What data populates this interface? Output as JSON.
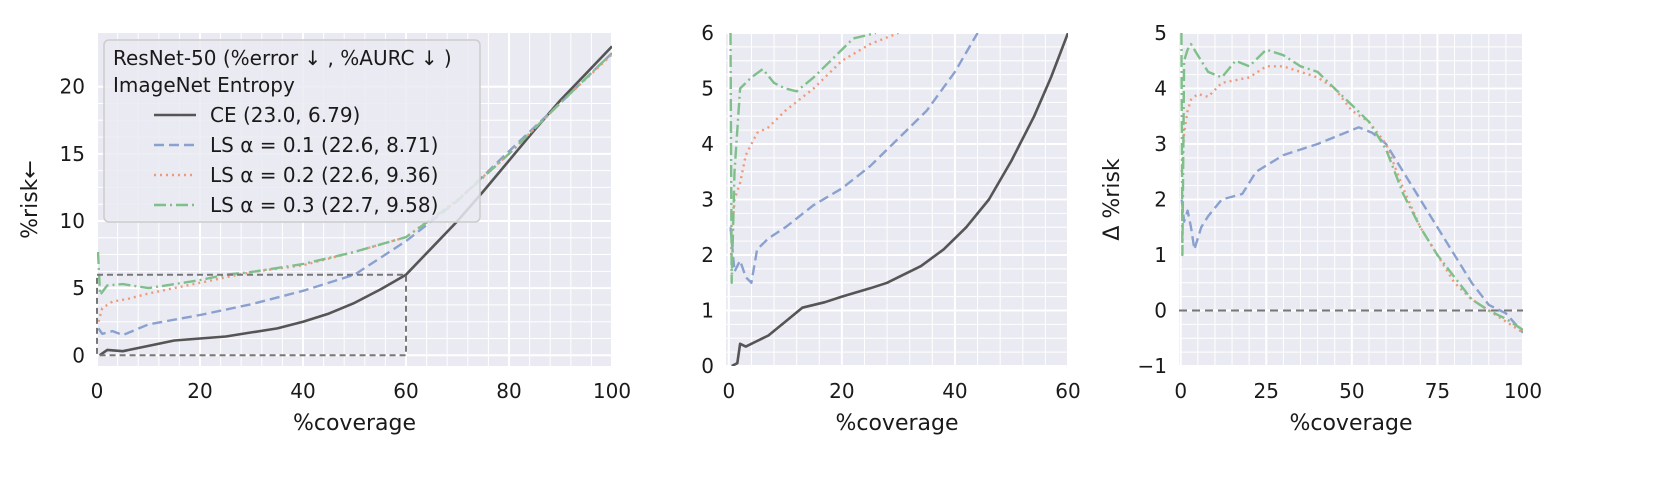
{
  "chart_data": [
    {
      "type": "line",
      "xlabel": "%coverage",
      "ylabel": "%risk←",
      "xlim": [
        0,
        100
      ],
      "ylim": [
        -0.8,
        24
      ],
      "xticks": [
        0,
        20,
        40,
        60,
        80,
        100
      ],
      "yticks": [
        0,
        5,
        10,
        15,
        20
      ],
      "grid": true,
      "legend": {
        "placement": "upper-left",
        "title_line1": "ResNet-50 (%error ↓ , %AURC ↓ )",
        "title_line2": "ImageNet Entropy",
        "entries": [
          "CE (23.0, 6.79)",
          "LS α = 0.1 (22.6, 8.71)",
          "LS α = 0.2 (22.6, 9.36)",
          "LS α = 0.3 (22.7, 9.58)"
        ]
      },
      "inset_box": {
        "x": [
          0,
          60
        ],
        "y": [
          0,
          6
        ]
      },
      "series": [
        {
          "key": "ce",
          "color": "#555555",
          "dash": "solid",
          "points": [
            [
              0.5,
              0.0
            ],
            [
              2,
              0.4
            ],
            [
              5,
              0.3
            ],
            [
              10,
              0.7
            ],
            [
              15,
              1.1
            ],
            [
              20,
              1.25
            ],
            [
              25,
              1.4
            ],
            [
              30,
              1.7
            ],
            [
              35,
              2.0
            ],
            [
              40,
              2.5
            ],
            [
              45,
              3.1
            ],
            [
              50,
              3.9
            ],
            [
              55,
              4.9
            ],
            [
              60,
              6.0
            ],
            [
              65,
              8.0
            ],
            [
              70,
              10.0
            ],
            [
              75,
              12.2
            ],
            [
              80,
              14.5
            ],
            [
              85,
              16.8
            ],
            [
              90,
              19.0
            ],
            [
              95,
              21.0
            ],
            [
              100,
              23.0
            ]
          ]
        },
        {
          "key": "ls1",
          "color": "#8aa1cf",
          "dash": "dashed",
          "points": [
            [
              0.3,
              2.0
            ],
            [
              1,
              1.6
            ],
            [
              3,
              1.8
            ],
            [
              5,
              1.5
            ],
            [
              10,
              2.3
            ],
            [
              20,
              3.0
            ],
            [
              30,
              3.8
            ],
            [
              40,
              4.8
            ],
            [
              50,
              6.0
            ],
            [
              60,
              8.5
            ],
            [
              70,
              11.5
            ],
            [
              80,
              15.2
            ],
            [
              90,
              18.8
            ],
            [
              100,
              22.5
            ]
          ]
        },
        {
          "key": "ls2",
          "color": "#ee9a7a",
          "dash": "dotted",
          "points": [
            [
              0.3,
              2.5
            ],
            [
              1,
              3.5
            ],
            [
              3,
              4.0
            ],
            [
              6,
              4.2
            ],
            [
              10,
              4.6
            ],
            [
              15,
              5.0
            ],
            [
              20,
              5.4
            ],
            [
              25,
              5.8
            ],
            [
              30,
              6.2
            ],
            [
              40,
              6.7
            ],
            [
              50,
              7.7
            ],
            [
              60,
              8.8
            ],
            [
              70,
              11.6
            ],
            [
              80,
              15.0
            ],
            [
              90,
              18.8
            ],
            [
              100,
              22.4
            ]
          ]
        },
        {
          "key": "ls3",
          "color": "#7fbf8a",
          "dash": "dashdot",
          "points": [
            [
              0.2,
              7.7
            ],
            [
              0.6,
              4.5
            ],
            [
              2,
              5.2
            ],
            [
              5,
              5.3
            ],
            [
              10,
              5.0
            ],
            [
              15,
              5.3
            ],
            [
              20,
              5.6
            ],
            [
              25,
              6.0
            ],
            [
              30,
              6.2
            ],
            [
              40,
              6.8
            ],
            [
              50,
              7.7
            ],
            [
              60,
              8.8
            ],
            [
              70,
              11.5
            ],
            [
              80,
              15.0
            ],
            [
              90,
              18.8
            ],
            [
              100,
              22.5
            ]
          ]
        }
      ]
    },
    {
      "type": "line",
      "xlabel": "%coverage",
      "ylabel": "",
      "xlim": [
        -0.5,
        60
      ],
      "ylim": [
        0,
        6
      ],
      "xticks": [
        0,
        20,
        40,
        60
      ],
      "yticks": [
        0,
        1,
        2,
        3,
        4,
        5,
        6
      ],
      "grid": true,
      "series": [
        {
          "key": "ce",
          "color": "#555555",
          "dash": "solid",
          "points": [
            [
              0.5,
              0.0
            ],
            [
              1.5,
              0.05
            ],
            [
              2,
              0.4
            ],
            [
              3,
              0.35
            ],
            [
              5,
              0.45
            ],
            [
              7,
              0.55
            ],
            [
              10,
              0.8
            ],
            [
              13,
              1.05
            ],
            [
              17,
              1.15
            ],
            [
              20,
              1.25
            ],
            [
              25,
              1.4
            ],
            [
              28,
              1.5
            ],
            [
              30,
              1.6
            ],
            [
              34,
              1.8
            ],
            [
              38,
              2.1
            ],
            [
              42,
              2.5
            ],
            [
              46,
              3.0
            ],
            [
              50,
              3.7
            ],
            [
              54,
              4.5
            ],
            [
              57,
              5.2
            ],
            [
              60,
              6.0
            ]
          ]
        },
        {
          "key": "ls1",
          "color": "#8aa1cf",
          "dash": "dashed",
          "points": [
            [
              0.3,
              2.5
            ],
            [
              1,
              1.7
            ],
            [
              2,
              1.9
            ],
            [
              3,
              1.6
            ],
            [
              4,
              1.5
            ],
            [
              5,
              2.1
            ],
            [
              7,
              2.3
            ],
            [
              10,
              2.5
            ],
            [
              15,
              2.9
            ],
            [
              20,
              3.2
            ],
            [
              25,
              3.6
            ],
            [
              30,
              4.1
            ],
            [
              35,
              4.6
            ],
            [
              40,
              5.3
            ],
            [
              44,
              6.0
            ]
          ]
        },
        {
          "key": "ls2",
          "color": "#ee9a7a",
          "dash": "dotted",
          "points": [
            [
              0.4,
              2.0
            ],
            [
              1,
              3.0
            ],
            [
              2,
              3.3
            ],
            [
              3,
              3.8
            ],
            [
              5,
              4.2
            ],
            [
              7,
              4.3
            ],
            [
              10,
              4.6
            ],
            [
              15,
              5.0
            ],
            [
              20,
              5.5
            ],
            [
              25,
              5.8
            ],
            [
              30,
              6.0
            ]
          ]
        },
        {
          "key": "ls3",
          "color": "#7fbf8a",
          "dash": "dashdot",
          "points": [
            [
              0.3,
              6.0
            ],
            [
              0.5,
              1.5
            ],
            [
              1,
              3.5
            ],
            [
              2,
              5.0
            ],
            [
              4,
              5.2
            ],
            [
              6,
              5.35
            ],
            [
              8,
              5.1
            ],
            [
              10,
              5.0
            ],
            [
              12,
              4.95
            ],
            [
              15,
              5.2
            ],
            [
              18,
              5.5
            ],
            [
              22,
              5.9
            ],
            [
              26,
              6.0
            ]
          ]
        }
      ]
    },
    {
      "type": "line",
      "xlabel": "%coverage",
      "ylabel": "Δ %risk",
      "xlim": [
        -0.5,
        100
      ],
      "ylim": [
        -1,
        5
      ],
      "xticks": [
        0,
        25,
        50,
        75,
        100
      ],
      "yticks": [
        -1,
        0,
        1,
        2,
        3,
        4,
        5
      ],
      "grid": true,
      "zero_line": 0,
      "series": [
        {
          "key": "ls1",
          "color": "#8aa1cf",
          "dash": "dashed",
          "points": [
            [
              0.3,
              2.0
            ],
            [
              1,
              1.6
            ],
            [
              2,
              1.8
            ],
            [
              3,
              1.5
            ],
            [
              4,
              1.1
            ],
            [
              6,
              1.5
            ],
            [
              8,
              1.7
            ],
            [
              12,
              2.0
            ],
            [
              18,
              2.1
            ],
            [
              22,
              2.5
            ],
            [
              30,
              2.8
            ],
            [
              40,
              3.0
            ],
            [
              48,
              3.2
            ],
            [
              52,
              3.3
            ],
            [
              56,
              3.2
            ],
            [
              60,
              3.0
            ],
            [
              65,
              2.5
            ],
            [
              70,
              2.0
            ],
            [
              75,
              1.5
            ],
            [
              80,
              1.0
            ],
            [
              85,
              0.5
            ],
            [
              90,
              0.1
            ],
            [
              95,
              -0.05
            ],
            [
              100,
              -0.4
            ]
          ]
        },
        {
          "key": "ls2",
          "color": "#ee9a7a",
          "dash": "dotted",
          "points": [
            [
              0.3,
              2.5
            ],
            [
              1,
              3.2
            ],
            [
              2,
              3.6
            ],
            [
              3,
              3.8
            ],
            [
              5,
              3.9
            ],
            [
              8,
              3.85
            ],
            [
              12,
              4.1
            ],
            [
              20,
              4.2
            ],
            [
              25,
              4.4
            ],
            [
              30,
              4.4
            ],
            [
              35,
              4.3
            ],
            [
              40,
              4.2
            ],
            [
              45,
              4.0
            ],
            [
              50,
              3.6
            ],
            [
              55,
              3.4
            ],
            [
              60,
              3.0
            ],
            [
              65,
              2.2
            ],
            [
              70,
              1.5
            ],
            [
              75,
              1.0
            ],
            [
              80,
              0.5
            ],
            [
              85,
              0.2
            ],
            [
              90,
              0.0
            ],
            [
              95,
              -0.2
            ],
            [
              100,
              -0.4
            ]
          ]
        },
        {
          "key": "ls3",
          "color": "#7fbf8a",
          "dash": "dashdot",
          "points": [
            [
              0.2,
              5.0
            ],
            [
              0.5,
              1.0
            ],
            [
              1,
              4.5
            ],
            [
              2,
              4.7
            ],
            [
              3,
              4.8
            ],
            [
              5,
              4.6
            ],
            [
              8,
              4.3
            ],
            [
              12,
              4.2
            ],
            [
              16,
              4.5
            ],
            [
              20,
              4.4
            ],
            [
              25,
              4.7
            ],
            [
              30,
              4.6
            ],
            [
              35,
              4.4
            ],
            [
              40,
              4.3
            ],
            [
              45,
              4.0
            ],
            [
              50,
              3.7
            ],
            [
              55,
              3.4
            ],
            [
              60,
              2.9
            ],
            [
              65,
              2.1
            ],
            [
              70,
              1.5
            ],
            [
              75,
              1.0
            ],
            [
              80,
              0.6
            ],
            [
              85,
              0.2
            ],
            [
              90,
              0.0
            ],
            [
              95,
              -0.15
            ],
            [
              100,
              -0.35
            ]
          ]
        }
      ]
    }
  ]
}
